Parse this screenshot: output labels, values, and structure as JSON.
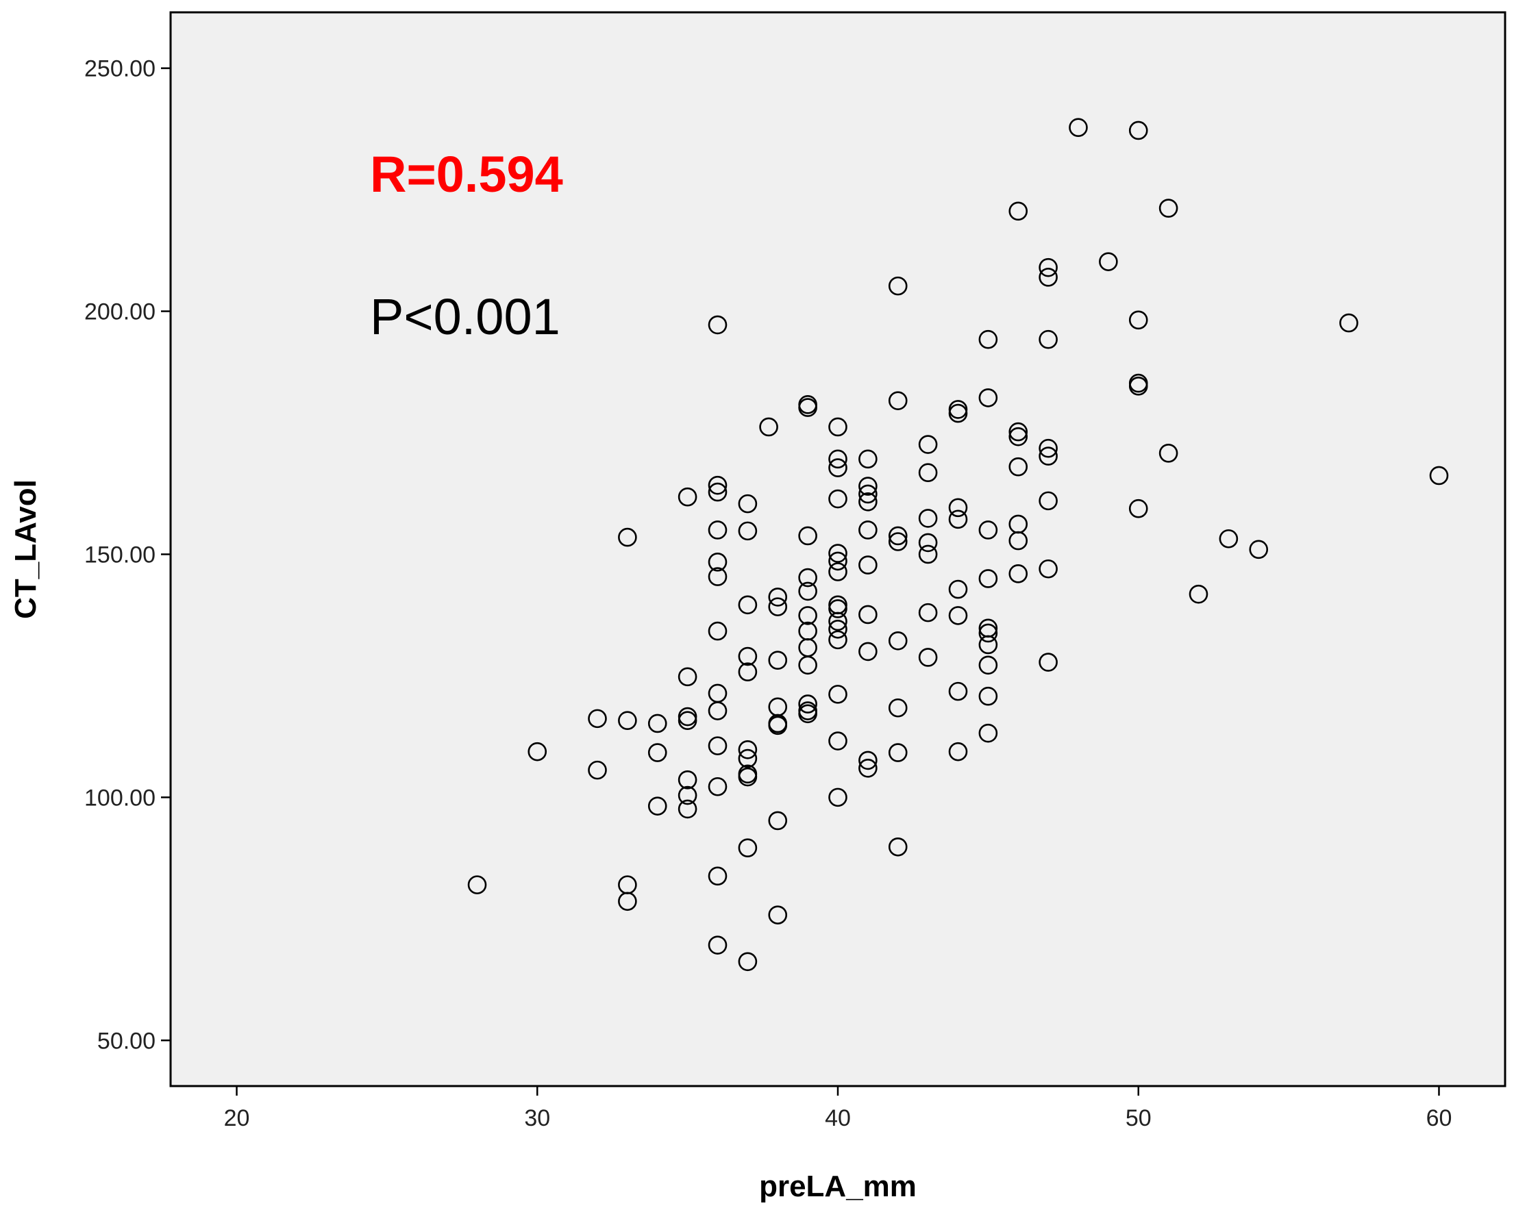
{
  "chart_data": {
    "type": "scatter",
    "title": "",
    "xlabel": "preLA_mm",
    "ylabel": "CT_LAvol",
    "xlim": [
      17.8,
      62.2
    ],
    "ylim": [
      40.6,
      261.5
    ],
    "xticks": [
      20,
      30,
      40,
      50,
      60
    ],
    "xtick_labels": [
      "20",
      "30",
      "40",
      "50",
      "60"
    ],
    "yticks": [
      50,
      100,
      150,
      200,
      250
    ],
    "ytick_labels": [
      "50.00",
      "100.00",
      "150.00",
      "200.00",
      "250.00"
    ],
    "grid": false,
    "legend": "none",
    "colors": {
      "plot_background": "#f0f0f0",
      "marker": "#000000",
      "r_annotation": "#ff0000",
      "p_annotation": "#000000"
    },
    "annotations": [
      {
        "id": "r",
        "text": "R=0.594"
      },
      {
        "id": "p",
        "text": "P<0.001"
      }
    ],
    "points": [
      [
        28,
        82
      ],
      [
        30,
        109.4
      ],
      [
        32,
        116.2
      ],
      [
        32,
        105.6
      ],
      [
        33,
        153.5
      ],
      [
        33,
        115.8
      ],
      [
        33,
        82
      ],
      [
        33,
        78.6
      ],
      [
        34,
        115.2
      ],
      [
        34,
        109.2
      ],
      [
        34,
        98.2
      ],
      [
        35,
        161.8
      ],
      [
        35,
        124.8
      ],
      [
        35,
        116.6
      ],
      [
        35,
        115.8
      ],
      [
        35,
        103.6
      ],
      [
        35,
        100.4
      ],
      [
        35,
        97.6
      ],
      [
        36,
        197.2
      ],
      [
        36,
        164.2
      ],
      [
        36,
        162.8
      ],
      [
        36,
        155
      ],
      [
        36,
        148.4
      ],
      [
        36,
        145.4
      ],
      [
        36,
        134.2
      ],
      [
        36,
        121.4
      ],
      [
        36,
        117.8
      ],
      [
        36,
        110.6
      ],
      [
        36,
        102.2
      ],
      [
        36,
        83.8
      ],
      [
        36,
        69.6
      ],
      [
        37,
        160.4
      ],
      [
        37,
        154.8
      ],
      [
        37,
        139.6
      ],
      [
        37,
        129
      ],
      [
        37,
        125.8
      ],
      [
        37,
        109.8
      ],
      [
        37,
        108
      ],
      [
        37,
        104.8
      ],
      [
        37,
        104.2
      ],
      [
        37,
        89.6
      ],
      [
        37,
        66.2
      ],
      [
        37.7,
        176.2
      ],
      [
        38,
        141.2
      ],
      [
        38,
        139.2
      ],
      [
        38,
        128.2
      ],
      [
        38,
        118.6
      ],
      [
        38,
        115.2
      ],
      [
        38,
        114.8
      ],
      [
        38,
        95.2
      ],
      [
        38,
        75.8
      ],
      [
        39,
        180.8
      ],
      [
        39,
        180.2
      ],
      [
        39,
        153.8
      ],
      [
        39,
        145.2
      ],
      [
        39,
        142.4
      ],
      [
        39,
        137.4
      ],
      [
        39,
        134.2
      ],
      [
        39,
        130.8
      ],
      [
        39,
        127.2
      ],
      [
        39,
        119.2
      ],
      [
        39,
        117.8
      ],
      [
        39,
        117.2
      ],
      [
        40,
        176.2
      ],
      [
        40,
        169.6
      ],
      [
        40,
        167.8
      ],
      [
        40,
        161.4
      ],
      [
        40,
        150.2
      ],
      [
        40,
        148.6
      ],
      [
        40,
        146.4
      ],
      [
        40,
        139.6
      ],
      [
        40,
        138.8
      ],
      [
        40,
        136.2
      ],
      [
        40,
        134.6
      ],
      [
        40,
        132.4
      ],
      [
        40,
        121.2
      ],
      [
        40,
        111.6
      ],
      [
        40,
        100
      ],
      [
        41,
        169.6
      ],
      [
        41,
        164
      ],
      [
        41,
        162.4
      ],
      [
        41,
        160.8
      ],
      [
        41,
        155
      ],
      [
        41,
        147.8
      ],
      [
        41,
        137.6
      ],
      [
        41,
        130
      ],
      [
        41,
        107.6
      ],
      [
        41,
        106
      ],
      [
        42,
        205.2
      ],
      [
        42,
        181.6
      ],
      [
        42,
        153.8
      ],
      [
        42,
        152.6
      ],
      [
        42,
        132.2
      ],
      [
        42,
        118.4
      ],
      [
        42,
        109.2
      ],
      [
        42,
        89.8
      ],
      [
        43,
        172.6
      ],
      [
        43,
        166.8
      ],
      [
        43,
        157.4
      ],
      [
        43,
        152.4
      ],
      [
        43,
        150
      ],
      [
        43,
        138
      ],
      [
        43,
        128.8
      ],
      [
        44,
        179.8
      ],
      [
        44,
        179
      ],
      [
        44,
        159.6
      ],
      [
        44,
        157.2
      ],
      [
        44,
        142.8
      ],
      [
        44,
        137.4
      ],
      [
        44,
        121.8
      ],
      [
        44,
        109.4
      ],
      [
        45,
        194.2
      ],
      [
        45,
        182.2
      ],
      [
        45,
        155
      ],
      [
        45,
        145
      ],
      [
        45,
        134.8
      ],
      [
        45,
        133.8
      ],
      [
        45,
        131.4
      ],
      [
        45,
        127.2
      ],
      [
        45,
        120.8
      ],
      [
        45,
        113.2
      ],
      [
        46,
        220.6
      ],
      [
        46,
        175.2
      ],
      [
        46,
        174.2
      ],
      [
        46,
        168
      ],
      [
        46,
        156.2
      ],
      [
        46,
        152.8
      ],
      [
        46,
        146
      ],
      [
        47,
        209
      ],
      [
        47,
        207
      ],
      [
        47,
        194.2
      ],
      [
        47,
        171.8
      ],
      [
        47,
        170.2
      ],
      [
        47,
        161
      ],
      [
        47,
        147
      ],
      [
        47,
        127.8
      ],
      [
        48,
        237.8
      ],
      [
        49,
        210.2
      ],
      [
        50,
        237.2
      ],
      [
        50,
        198.2
      ],
      [
        50,
        185.2
      ],
      [
        50,
        184.6
      ],
      [
        50,
        159.4
      ],
      [
        51,
        221.2
      ],
      [
        51,
        170.8
      ],
      [
        52,
        141.8
      ],
      [
        53,
        153.2
      ],
      [
        54,
        151
      ],
      [
        57,
        197.6
      ],
      [
        60,
        166.2
      ]
    ]
  }
}
